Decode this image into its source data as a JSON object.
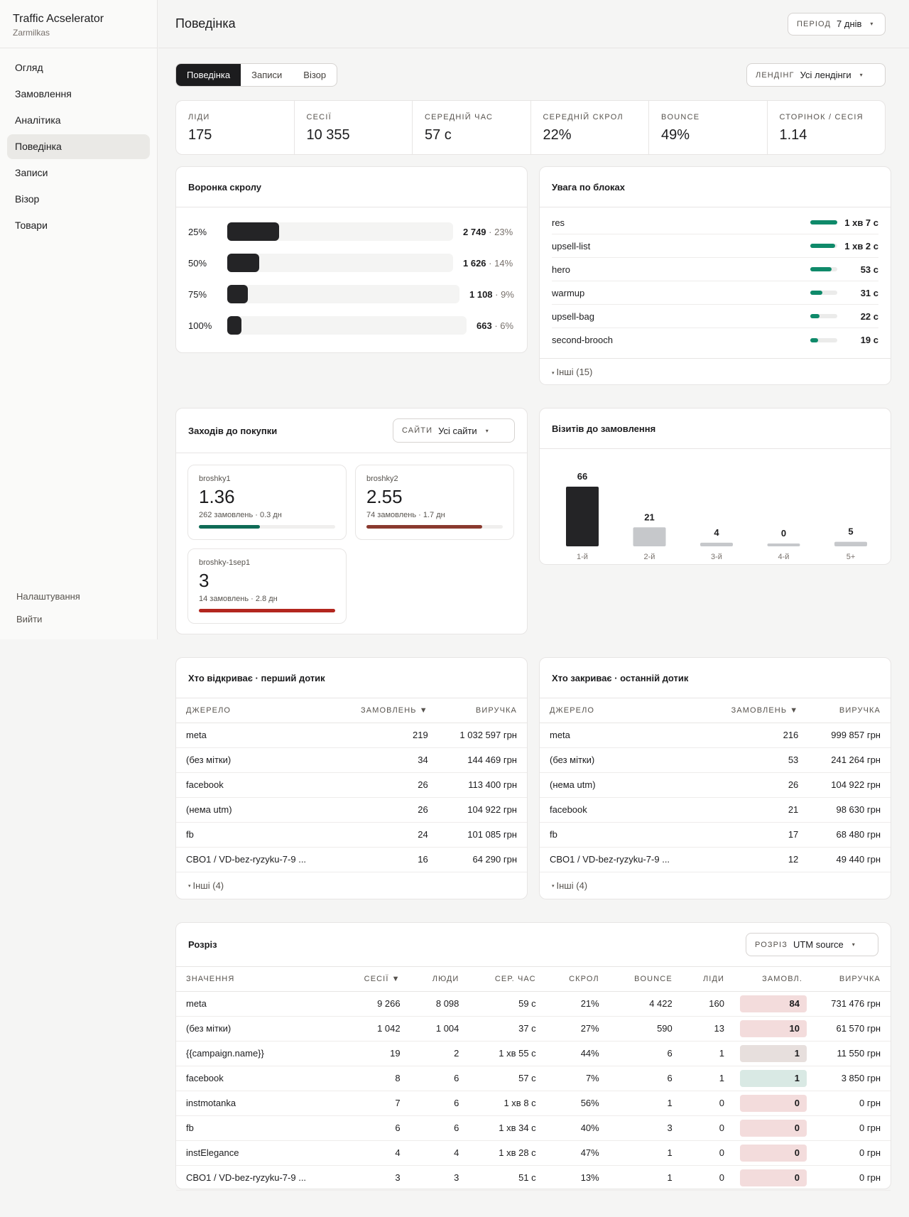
{
  "brand": {
    "title": "Traffic Acselerator",
    "subtitle": "Zarmilkas"
  },
  "nav": [
    "Огляд",
    "Замовлення",
    "Аналітика",
    "Поведінка",
    "Записи",
    "Візор",
    "Товари"
  ],
  "nav_bottom": [
    "Налаштування",
    "Вийти"
  ],
  "page_title": "Поведінка",
  "period": {
    "label": "Період",
    "value": "7 днів"
  },
  "tabs": [
    "Поведінка",
    "Записи",
    "Візор"
  ],
  "landing": {
    "label": "Лендінг",
    "value": "Усі лендінги"
  },
  "kpis": [
    {
      "label": "Ліди",
      "value": "175"
    },
    {
      "label": "Сесії",
      "value": "10 355"
    },
    {
      "label": "Середній час",
      "value": "57 с"
    },
    {
      "label": "Середній скрол",
      "value": "22%"
    },
    {
      "label": "Bounce",
      "value": "49%"
    },
    {
      "label": "Сторінок / сесія",
      "value": "1.14"
    }
  ],
  "funnel": {
    "title": "Воронка скролу",
    "rows": [
      {
        "pct": "25%",
        "count": "2 749",
        "share": "23%",
        "fill": 0.23
      },
      {
        "pct": "50%",
        "count": "1 626",
        "share": "14%",
        "fill": 0.14
      },
      {
        "pct": "75%",
        "count": "1 108",
        "share": "9%",
        "fill": 0.09
      },
      {
        "pct": "100%",
        "count": "663",
        "share": "6%",
        "fill": 0.06
      }
    ]
  },
  "attention": {
    "title": "Увага по блоках",
    "rows": [
      {
        "name": "res",
        "value": "1 хв 7 с",
        "fill": 1.0
      },
      {
        "name": "upsell-list",
        "value": "1 хв 2 с",
        "fill": 0.93
      },
      {
        "name": "hero",
        "value": "53 с",
        "fill": 0.79
      },
      {
        "name": "warmup",
        "value": "31 с",
        "fill": 0.46
      },
      {
        "name": "upsell-bag",
        "value": "22 с",
        "fill": 0.33
      },
      {
        "name": "second-brooch",
        "value": "19 с",
        "fill": 0.28
      }
    ],
    "more": "Інші (15)"
  },
  "purchase": {
    "title": "Заходів до покупки",
    "select": {
      "label": "Сайти",
      "value": "Усі сайти"
    },
    "sites": [
      {
        "name": "broshky1",
        "value": "1.36",
        "sub": "262 замовлень · 0.3 дн",
        "color": "#0f6b56",
        "fill": 0.45
      },
      {
        "name": "broshky2",
        "value": "2.55",
        "sub": "74 замовлень · 1.7 дн",
        "color": "#8a3a2f",
        "fill": 0.85
      },
      {
        "name": "broshky-1sep1",
        "value": "3",
        "sub": "14 замовлень · 2.8 дн",
        "color": "#b3261e",
        "fill": 1.0
      }
    ]
  },
  "chart_data": {
    "type": "bar",
    "title": "Візитів до замовлення",
    "categories": [
      "1-й",
      "2-й",
      "3-й",
      "4-й",
      "5+"
    ],
    "values": [
      66,
      21,
      4,
      0,
      5
    ],
    "colors": [
      "#242426",
      "#c6c8cb",
      "#c6c8cb",
      "#c6c8cb",
      "#c6c8cb"
    ]
  },
  "first_touch": {
    "title": "Хто відкриває · перший дотик",
    "headers": [
      "Джерело",
      "Замовлень ▼",
      "Виручка"
    ],
    "rows": [
      [
        "meta",
        "219",
        "1 032 597 грн"
      ],
      [
        "(без мітки)",
        "34",
        "144 469 грн"
      ],
      [
        "facebook",
        "26",
        "113 400 грн"
      ],
      [
        "(нема utm)",
        "26",
        "104 922 грн"
      ],
      [
        "fb",
        "24",
        "101 085 грн"
      ],
      [
        "CBO1 / VD-bez-ryzyku-7-9 ...",
        "16",
        "64 290 грн"
      ]
    ],
    "more": "Інші (4)"
  },
  "last_touch": {
    "title": "Хто закриває · останній дотик",
    "headers": [
      "Джерело",
      "Замовлень ▼",
      "Виручка"
    ],
    "rows": [
      [
        "meta",
        "216",
        "999 857 грн"
      ],
      [
        "(без мітки)",
        "53",
        "241 264 грн"
      ],
      [
        "(нема utm)",
        "26",
        "104 922 грн"
      ],
      [
        "facebook",
        "21",
        "98 630 грн"
      ],
      [
        "fb",
        "17",
        "68 480 грн"
      ],
      [
        "CBO1 / VD-bez-ryzyku-7-9 ...",
        "12",
        "49 440 грн"
      ]
    ],
    "more": "Інші (4)"
  },
  "breakdown": {
    "title": "Розріз",
    "select": {
      "label": "Розріз",
      "value": "UTM source"
    },
    "headers": [
      "Значення",
      "Сесії ▼",
      "Люди",
      "Сер. час",
      "Скрол",
      "Bounce",
      "Ліди",
      "Замовл.",
      "Виручка"
    ],
    "rows": [
      {
        "cells": [
          "meta",
          "9 266",
          "8 098",
          "59 с",
          "21%",
          "4 422",
          "160",
          "84",
          "731 476 грн"
        ],
        "tone": "red"
      },
      {
        "cells": [
          "(без мітки)",
          "1 042",
          "1 004",
          "37 с",
          "27%",
          "590",
          "13",
          "10",
          "61 570 грн"
        ],
        "tone": "red"
      },
      {
        "cells": [
          "{{campaign.name}}",
          "19",
          "2",
          "1 хв 55 с",
          "44%",
          "6",
          "1",
          "1",
          "11 550 грн"
        ],
        "tone": "grey"
      },
      {
        "cells": [
          "facebook",
          "8",
          "6",
          "57 с",
          "7%",
          "6",
          "1",
          "1",
          "3 850 грн"
        ],
        "tone": "green"
      },
      {
        "cells": [
          "instmotanka",
          "7",
          "6",
          "1 хв 8 с",
          "56%",
          "1",
          "0",
          "0",
          "0 грн"
        ],
        "tone": "red"
      },
      {
        "cells": [
          "fb",
          "6",
          "6",
          "1 хв 34 с",
          "40%",
          "3",
          "0",
          "0",
          "0 грн"
        ],
        "tone": "red"
      },
      {
        "cells": [
          "instElegance",
          "4",
          "4",
          "1 хв 28 с",
          "47%",
          "1",
          "0",
          "0",
          "0 грн"
        ],
        "tone": "red"
      },
      {
        "cells": [
          "CBO1 / VD-bez-ryzyku-7-9 ...",
          "3",
          "3",
          "51 с",
          "13%",
          "1",
          "0",
          "0",
          "0 грн"
        ],
        "tone": "red"
      }
    ]
  }
}
